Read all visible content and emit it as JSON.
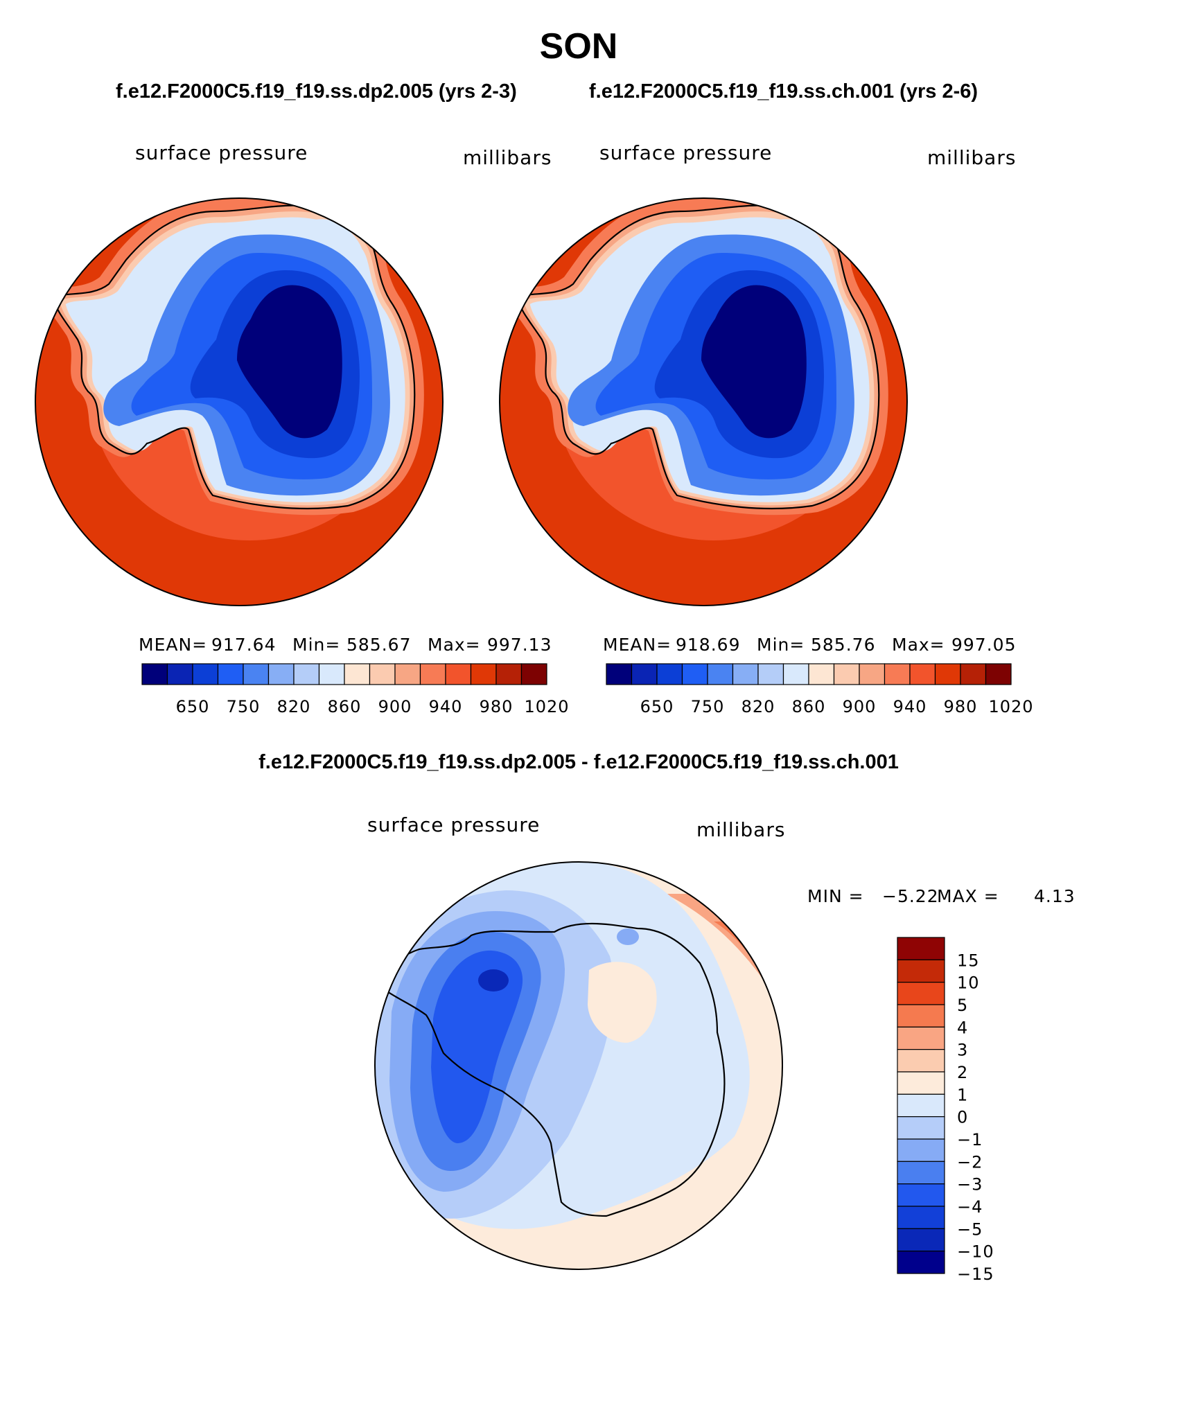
{
  "figure": {
    "title": "SON",
    "case_a_header": "f.e12.F2000C5.f19_f19.ss.dp2.005 (yrs 2-3)",
    "case_b_header": "f.e12.F2000C5.f19_f19.ss.ch.001 (yrs 2-6)",
    "diff_header": "f.e12.F2000C5.f19_f19.ss.dp2.005 - f.e12.F2000C5.f19_f19.ss.ch.001"
  },
  "colors": {
    "abs_scale": [
      "#00007a",
      "#0a24b4",
      "#0c3fd6",
      "#1f5ef4",
      "#4a83f2",
      "#87aef5",
      "#b4cdf8",
      "#d9e9fc",
      "#fde6d3",
      "#fbcbb0",
      "#f7a684",
      "#f77b55",
      "#f2542c",
      "#e03806",
      "#b52106",
      "#7d0202"
    ],
    "diff_scale": [
      "#00008c",
      "#0a28b8",
      "#1240d8",
      "#2258ee",
      "#4a7ff0",
      "#86abf5",
      "#b5cdf9",
      "#d9e8fb",
      "#fdebdb",
      "#fbccb0",
      "#f9a583",
      "#f57a4f",
      "#e8461b",
      "#c42a08",
      "#8f0404"
    ],
    "coastline": "#000000"
  },
  "chart_data": [
    {
      "type": "heatmap",
      "projection": "south-polar-stereographic",
      "title": "surface pressure",
      "units": "millibars",
      "mean_label": "MEAN=",
      "mean": 917.64,
      "min_label": "Min=",
      "min": 585.67,
      "max_label": "Max=",
      "max": 997.13,
      "colorbar_orientation": "horizontal",
      "colorbar_tick_labels": [
        "650",
        "750",
        "820",
        "860",
        "900",
        "940",
        "980",
        "1020"
      ],
      "contour_levels": [
        600,
        650,
        700,
        750,
        800,
        820,
        840,
        860,
        880,
        900,
        920,
        940,
        960,
        980,
        1000,
        1020
      ]
    },
    {
      "type": "heatmap",
      "projection": "south-polar-stereographic",
      "title": "surface pressure",
      "units": "millibars",
      "mean_label": "MEAN=",
      "mean": 918.69,
      "min_label": "Min=",
      "min": 585.76,
      "max_label": "Max=",
      "max": 997.05,
      "colorbar_orientation": "horizontal",
      "colorbar_tick_labels": [
        "650",
        "750",
        "820",
        "860",
        "900",
        "940",
        "980",
        "1020"
      ],
      "contour_levels": [
        600,
        650,
        700,
        750,
        800,
        820,
        840,
        860,
        880,
        900,
        920,
        940,
        960,
        980,
        1000,
        1020
      ]
    },
    {
      "type": "heatmap",
      "projection": "south-polar-stereographic",
      "title": "surface pressure",
      "units": "millibars",
      "min_label": "MIN =",
      "min": "−5.22",
      "max_label": "MAX =",
      "max": "4.13",
      "colorbar_orientation": "vertical",
      "colorbar_tick_labels": [
        "15",
        "10",
        "5",
        "4",
        "3",
        "2",
        "1",
        "0",
        "−1",
        "−2",
        "−3",
        "−4",
        "−5",
        "−10",
        "−15"
      ],
      "contour_levels": [
        -15,
        -10,
        -5,
        -4,
        -3,
        -2,
        -1,
        0,
        1,
        2,
        3,
        4,
        5,
        10,
        15
      ]
    }
  ]
}
